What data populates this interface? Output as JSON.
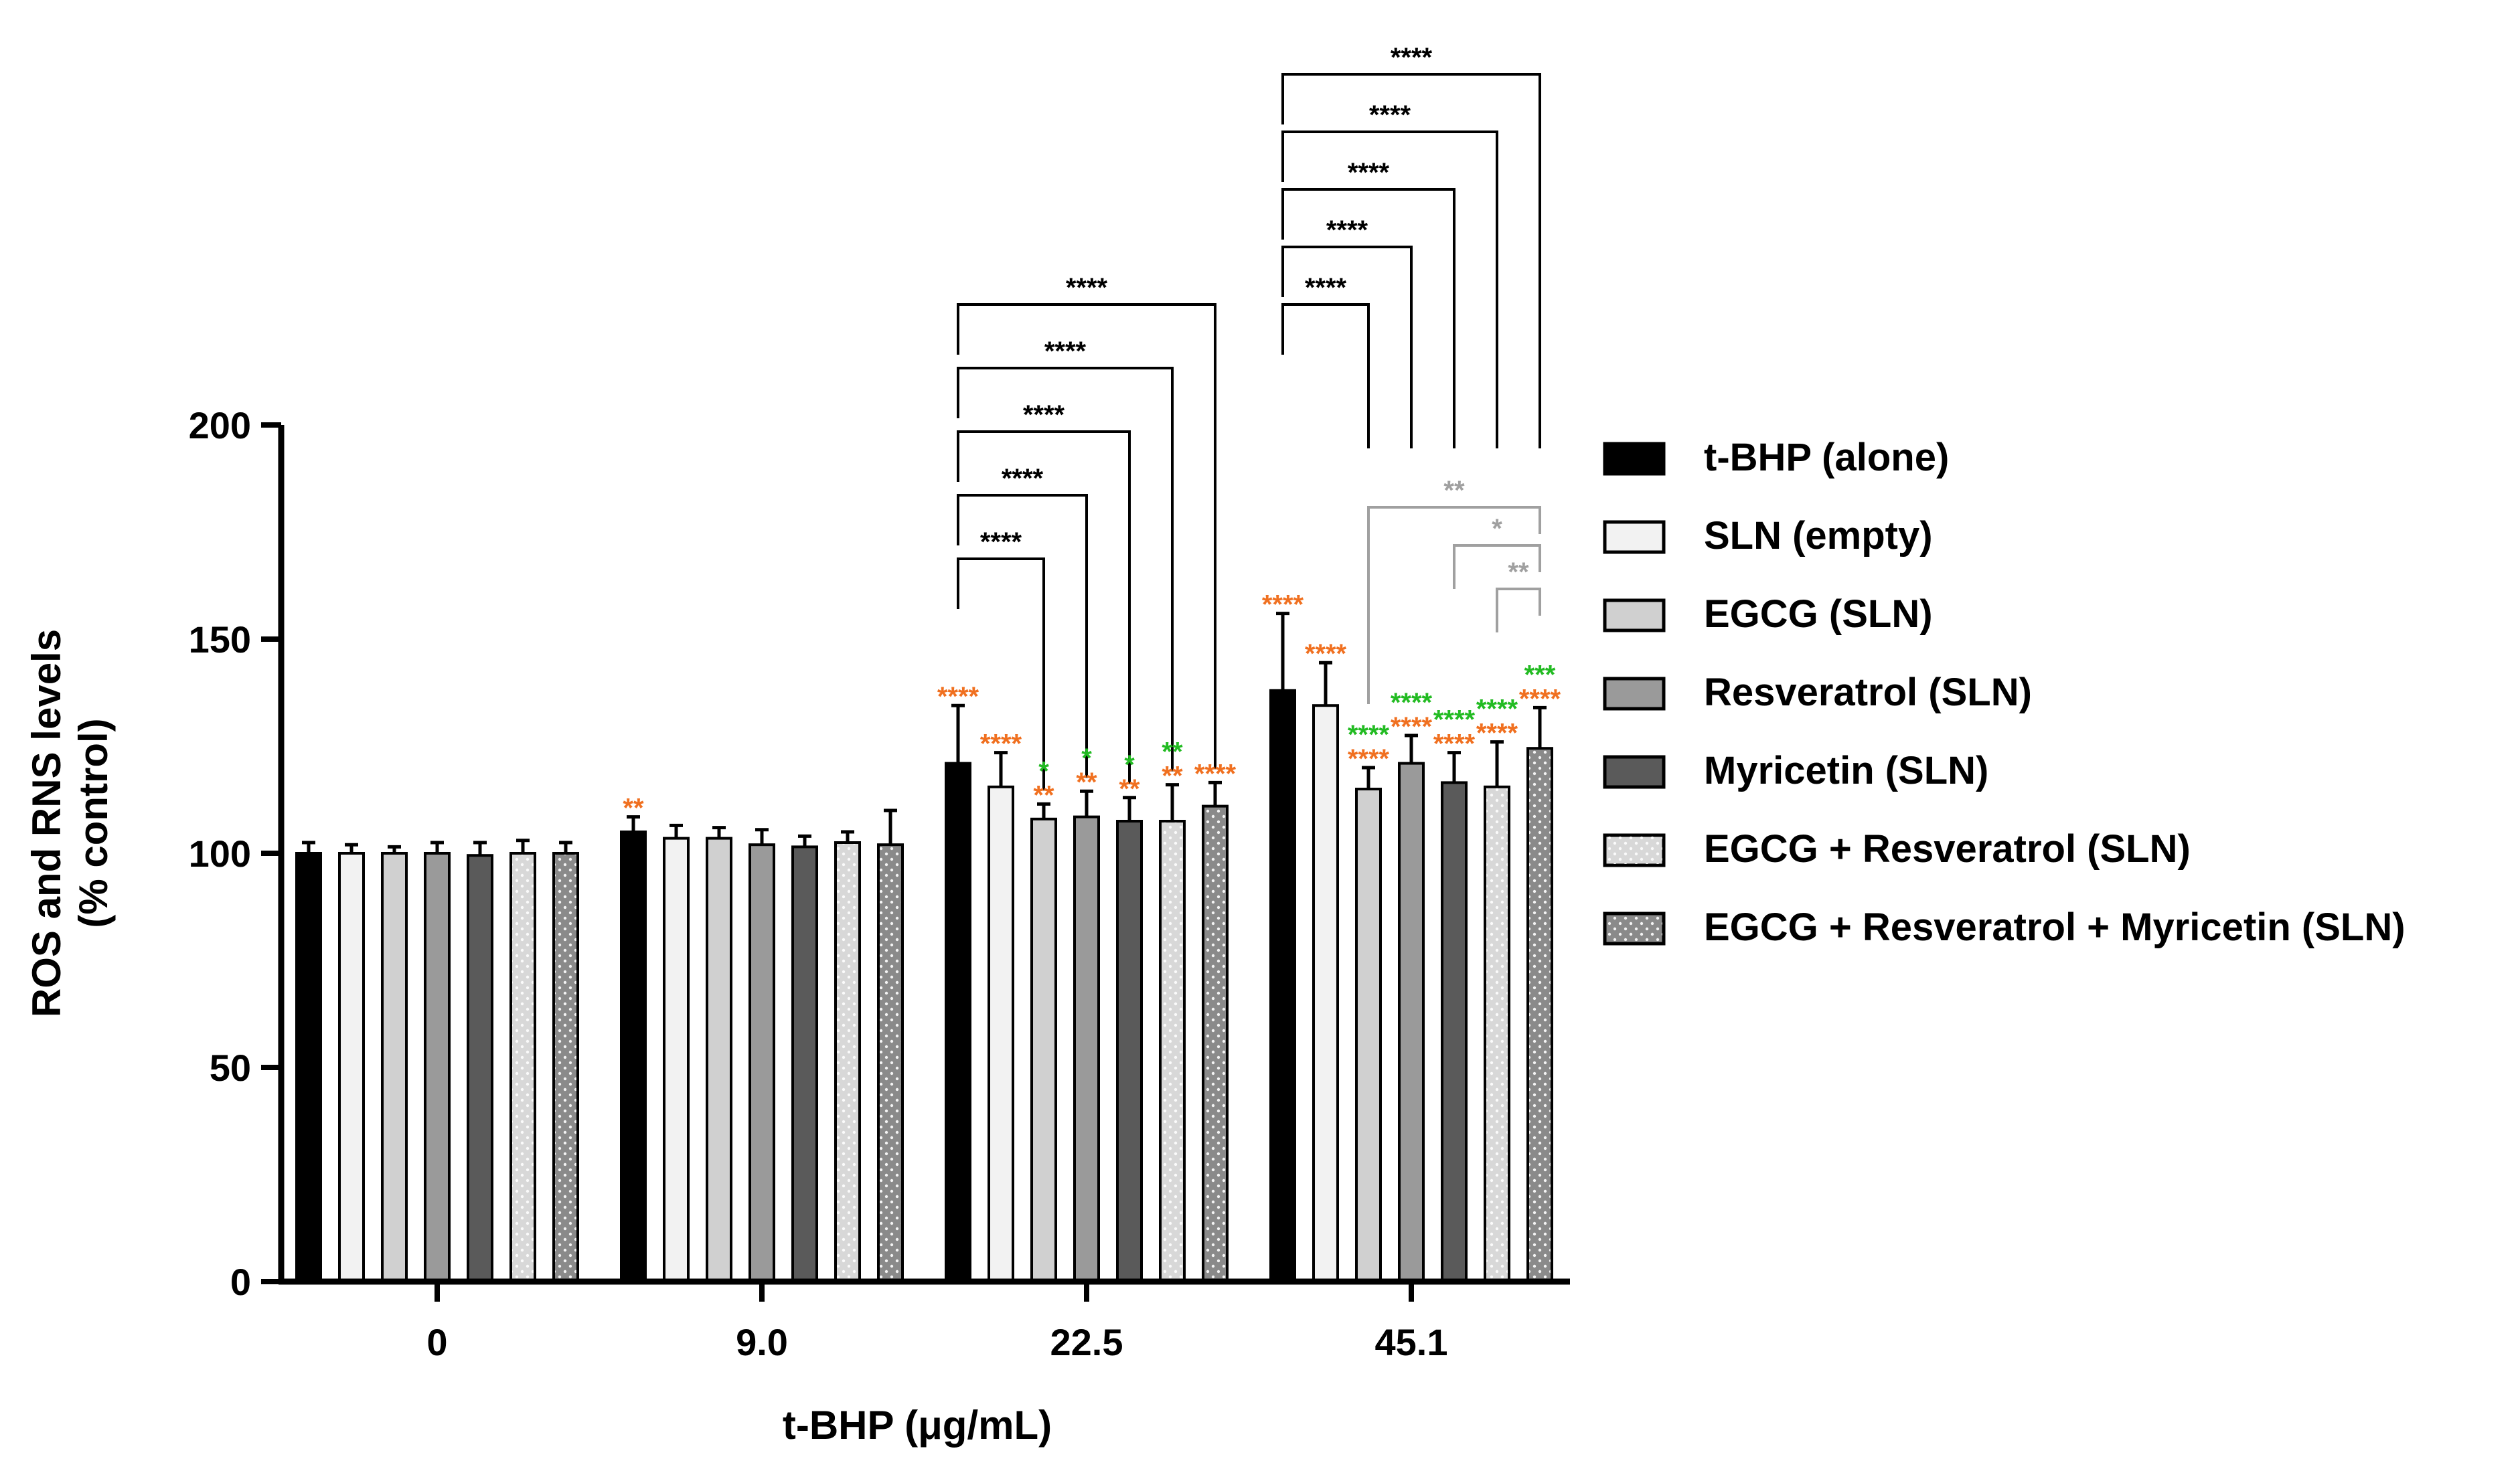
{
  "chart_data": {
    "type": "bar",
    "title": "",
    "xlabel": "t-BHP (μg/mL)",
    "ylabel_line1": "ROS and RNS levels",
    "ylabel_line2": "(% control)",
    "ylim": [
      0,
      200
    ],
    "yticks": [
      0,
      50,
      100,
      150,
      200
    ],
    "categories": [
      "0",
      "9.0",
      "22.5",
      "45.1"
    ],
    "legend_position": "right",
    "series": [
      {
        "name": "t-BHP (alone)",
        "color": "#000000",
        "pattern": "solid",
        "values": [
          100,
          105,
          121,
          138
        ],
        "errors": [
          2.5,
          3.5,
          13.5,
          18
        ]
      },
      {
        "name": "SLN (empty)",
        "color": "#f2f2f2",
        "pattern": "solid",
        "values": [
          100,
          103.5,
          115.5,
          134.5
        ],
        "errors": [
          2,
          3,
          8,
          10
        ]
      },
      {
        "name": "EGCG (SLN)",
        "color": "#d0d0d0",
        "pattern": "solid",
        "values": [
          100,
          103.5,
          108,
          115
        ],
        "errors": [
          1.5,
          2.5,
          3.5,
          5
        ]
      },
      {
        "name": "Resveratrol (SLN)",
        "color": "#9a9a9a",
        "pattern": "solid",
        "values": [
          100,
          102,
          108.5,
          121
        ],
        "errors": [
          2.5,
          3.5,
          6,
          6.5
        ]
      },
      {
        "name": "Myricetin (SLN)",
        "color": "#5a5a5a",
        "pattern": "solid",
        "values": [
          99.5,
          101.5,
          107.5,
          116.5
        ],
        "errors": [
          3,
          2.5,
          5.5,
          7
        ]
      },
      {
        "name": "EGCG + Resveratrol (SLN)",
        "color": "#d8d8d8",
        "pattern": "dots",
        "values": [
          100,
          102.5,
          107.5,
          115.5
        ],
        "errors": [
          3,
          2.5,
          8.5,
          10.5
        ]
      },
      {
        "name": "EGCG + Resveratrol + Myricetin (SLN)",
        "color": "#8a8a8a",
        "pattern": "dots",
        "values": [
          100,
          102,
          111,
          124.5
        ],
        "errors": [
          2.5,
          8,
          5.5,
          9.5
        ]
      }
    ],
    "bar_annotations": [
      {
        "group": 1,
        "series": 0,
        "lines": [
          {
            "text": "**",
            "color": "#f07020"
          }
        ]
      },
      {
        "group": 2,
        "series": 0,
        "lines": [
          {
            "text": "****",
            "color": "#f07020"
          }
        ]
      },
      {
        "group": 2,
        "series": 1,
        "lines": [
          {
            "text": "****",
            "color": "#f07020"
          }
        ]
      },
      {
        "group": 2,
        "series": 2,
        "lines": [
          {
            "text": "*",
            "color": "#22bb22"
          },
          {
            "text": "**",
            "color": "#f07020"
          }
        ]
      },
      {
        "group": 2,
        "series": 3,
        "lines": [
          {
            "text": "*",
            "color": "#22bb22"
          },
          {
            "text": "**",
            "color": "#f07020"
          }
        ]
      },
      {
        "group": 2,
        "series": 4,
        "lines": [
          {
            "text": "*",
            "color": "#22bb22"
          },
          {
            "text": "**",
            "color": "#f07020"
          }
        ]
      },
      {
        "group": 2,
        "series": 5,
        "lines": [
          {
            "text": "**",
            "color": "#22bb22"
          },
          {
            "text": "**",
            "color": "#f07020"
          }
        ]
      },
      {
        "group": 2,
        "series": 6,
        "lines": [
          {
            "text": "****",
            "color": "#f07020"
          }
        ]
      },
      {
        "group": 3,
        "series": 0,
        "lines": [
          {
            "text": "****",
            "color": "#f07020"
          }
        ]
      },
      {
        "group": 3,
        "series": 1,
        "lines": [
          {
            "text": "****",
            "color": "#f07020"
          }
        ]
      },
      {
        "group": 3,
        "series": 2,
        "lines": [
          {
            "text": "****",
            "color": "#22bb22"
          },
          {
            "text": "****",
            "color": "#f07020"
          }
        ]
      },
      {
        "group": 3,
        "series": 3,
        "lines": [
          {
            "text": "****",
            "color": "#22bb22"
          },
          {
            "text": "****",
            "color": "#f07020"
          }
        ]
      },
      {
        "group": 3,
        "series": 4,
        "lines": [
          {
            "text": "****",
            "color": "#22bb22"
          },
          {
            "text": "****",
            "color": "#f07020"
          }
        ]
      },
      {
        "group": 3,
        "series": 5,
        "lines": [
          {
            "text": "****",
            "color": "#22bb22"
          },
          {
            "text": "****",
            "color": "#f07020"
          }
        ]
      },
      {
        "group": 3,
        "series": 6,
        "lines": [
          {
            "text": "***",
            "color": "#22bb22"
          },
          {
            "text": "****",
            "color": "#f07020"
          }
        ]
      }
    ],
    "comparison_brackets": [
      {
        "group": 2,
        "from": 0,
        "to": 2,
        "level": 1,
        "label": "****",
        "color": "#000000"
      },
      {
        "group": 2,
        "from": 0,
        "to": 3,
        "level": 2,
        "label": "****",
        "color": "#000000"
      },
      {
        "group": 2,
        "from": 0,
        "to": 4,
        "level": 3,
        "label": "****",
        "color": "#000000"
      },
      {
        "group": 2,
        "from": 0,
        "to": 5,
        "level": 4,
        "label": "****",
        "color": "#000000"
      },
      {
        "group": 2,
        "from": 0,
        "to": 6,
        "level": 5,
        "label": "****",
        "color": "#000000"
      },
      {
        "group": 3,
        "from": 0,
        "to": 2,
        "level": 1,
        "label": "****",
        "color": "#000000"
      },
      {
        "group": 3,
        "from": 0,
        "to": 3,
        "level": 2,
        "label": "****",
        "color": "#000000"
      },
      {
        "group": 3,
        "from": 0,
        "to": 4,
        "level": 3,
        "label": "****",
        "color": "#000000"
      },
      {
        "group": 3,
        "from": 0,
        "to": 5,
        "level": 4,
        "label": "****",
        "color": "#000000"
      },
      {
        "group": 3,
        "from": 0,
        "to": 6,
        "level": 5,
        "label": "****",
        "color": "#000000"
      },
      {
        "group": 3,
        "from": 5,
        "to": 6,
        "level": 1,
        "label": "**",
        "color": "#a0a0a0"
      },
      {
        "group": 3,
        "from": 4,
        "to": 6,
        "level": 2,
        "label": "*",
        "color": "#a0a0a0"
      },
      {
        "group": 3,
        "from": 2,
        "to": 6,
        "level": 3,
        "label": "**",
        "color": "#a0a0a0"
      }
    ]
  }
}
